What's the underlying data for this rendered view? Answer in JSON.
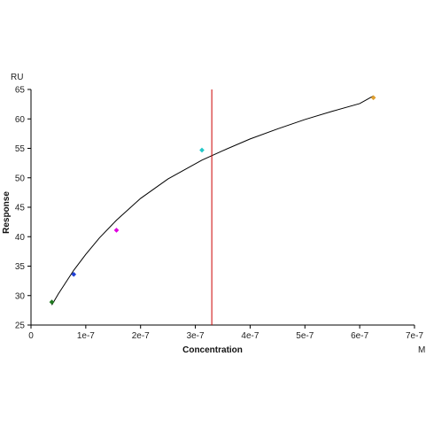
{
  "chart_data": {
    "type": "scatter",
    "x_unit": "M",
    "y_unit": "RU",
    "xlabel": "Concentration",
    "ylabel": "Response",
    "xlim": [
      0,
      7e-07
    ],
    "ylim": [
      25,
      65
    ],
    "x_ticks": [
      0,
      1e-07,
      2e-07,
      3e-07,
      4e-07,
      5e-07,
      6e-07,
      7e-07
    ],
    "x_tick_labels": [
      "0",
      "1e-7",
      "2e-7",
      "3e-7",
      "4e-7",
      "5e-7",
      "6e-7",
      "7e-7"
    ],
    "y_ticks": [
      25,
      30,
      35,
      40,
      45,
      50,
      55,
      60,
      65
    ],
    "y_tick_labels": [
      "25",
      "30",
      "35",
      "40",
      "45",
      "50",
      "55",
      "60",
      "65"
    ],
    "points": [
      {
        "x": 3.8e-08,
        "y": 28.9,
        "color": "#1f7a1f"
      },
      {
        "x": 7.8e-08,
        "y": 33.6,
        "color": "#1f3fd6"
      },
      {
        "x": 1.56e-07,
        "y": 41.1,
        "color": "#e000e0"
      },
      {
        "x": 3.12e-07,
        "y": 54.7,
        "color": "#22c8c8"
      },
      {
        "x": 6.25e-07,
        "y": 63.6,
        "color": "#e0a030"
      }
    ],
    "fit_curve": {
      "color": "#000000",
      "x": [
        3.8e-08,
        5e-08,
        7.8e-08,
        1e-07,
        1.25e-07,
        1.56e-07,
        2e-07,
        2.5e-07,
        3.12e-07,
        3.5e-07,
        4e-07,
        4.5e-07,
        5e-07,
        5.5e-07,
        6e-07,
        6.25e-07
      ],
      "y": [
        28.4,
        30.3,
        34.3,
        37.0,
        39.8,
        42.8,
        46.5,
        49.8,
        53.0,
        54.6,
        56.6,
        58.3,
        59.9,
        61.3,
        62.6,
        63.9
      ]
    },
    "vertical_line": {
      "x": 3.3e-07,
      "color": "#cc0000"
    },
    "grid": false
  }
}
